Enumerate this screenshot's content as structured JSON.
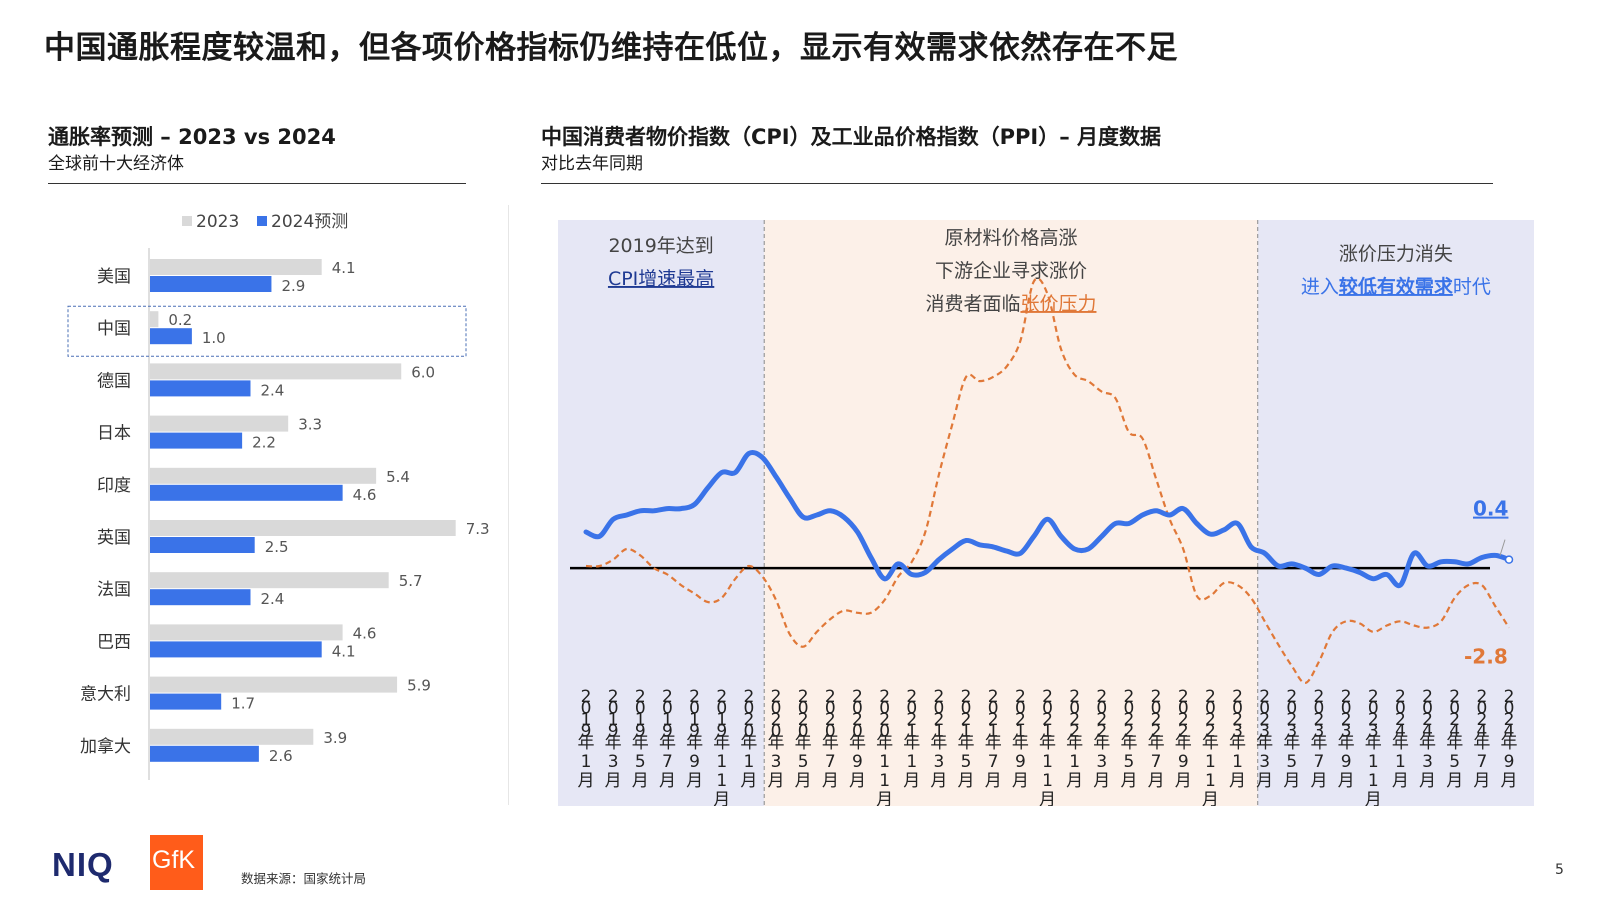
{
  "page": {
    "title": "中国通胀程度较温和，但各项价格指标仍维持在低位，显示有效需求依然存在不足",
    "source": "数据来源：国家统计局",
    "page_number": "5",
    "logos": {
      "niq": "NIQ",
      "gfk": "GfK"
    }
  },
  "colors": {
    "s2023": "#d9d9d9",
    "s2024": "#3a73e8",
    "cpi": "#3a73e8",
    "ppi": "#e07838",
    "shade_blue": "#e6e7f5",
    "shade_orange": "#fcf0e8",
    "highlight_box": "#4a6fb5"
  },
  "left": {
    "title": "通胀率预测 – 2023 vs 2024",
    "subtitle": "全球前十大经济体"
  },
  "right": {
    "title": "中国消费者物价指数（CPI）及工业品价格指数（PPI）– 月度数据",
    "subtitle": "对比去年同期"
  },
  "chart_data": [
    {
      "type": "bar",
      "orientation": "horizontal",
      "categories": [
        "美国",
        "中国",
        "德国",
        "日本",
        "印度",
        "英国",
        "法国",
        "巴西",
        "意大利",
        "加拿大"
      ],
      "series": [
        {
          "name": "2023",
          "values": [
            4.1,
            0.2,
            6.0,
            3.3,
            5.4,
            7.3,
            5.7,
            4.6,
            5.9,
            3.9
          ],
          "labels": [
            "4.1",
            "0.2",
            "6.0",
            "3.3",
            "5.4",
            "7.3",
            "5.7",
            "4.6",
            "5.9",
            "3.9"
          ]
        },
        {
          "name": "2024预测",
          "values": [
            2.9,
            1.0,
            2.4,
            2.2,
            4.6,
            2.5,
            2.4,
            4.1,
            1.7,
            2.6
          ],
          "labels": [
            "2.9",
            "1.0",
            "2.4",
            "2.2",
            "4.6",
            "2.5",
            "2.4",
            "4.1",
            "1.7",
            "2.6"
          ]
        }
      ],
      "highlight_category": "中国",
      "legend_position": "top",
      "xlim": [
        0,
        8
      ]
    },
    {
      "type": "line",
      "x": [
        "2019年1月",
        "2019年2月",
        "2019年3月",
        "2019年4月",
        "2019年5月",
        "2019年6月",
        "2019年7月",
        "2019年8月",
        "2019年9月",
        "2019年10月",
        "2019年11月",
        "2019年12月",
        "2020年1月",
        "2020年2月",
        "2020年3月",
        "2020年4月",
        "2020年5月",
        "2020年6月",
        "2020年7月",
        "2020年8月",
        "2020年9月",
        "2020年10月",
        "2020年11月",
        "2020年12月",
        "2021年1月",
        "2021年2月",
        "2021年3月",
        "2021年4月",
        "2021年5月",
        "2021年6月",
        "2021年7月",
        "2021年8月",
        "2021年9月",
        "2021年10月",
        "2021年11月",
        "2021年12月",
        "2022年1月",
        "2022年2月",
        "2022年3月",
        "2022年4月",
        "2022年5月",
        "2022年6月",
        "2022年7月",
        "2022年8月",
        "2022年9月",
        "2022年10月",
        "2022年11月",
        "2022年12月",
        "2023年1月",
        "2023年2月",
        "2023年3月",
        "2023年4月",
        "2023年5月",
        "2023年6月",
        "2023年7月",
        "2023年8月",
        "2023年9月",
        "2023年10月",
        "2023年11月",
        "2023年12月",
        "2024年1月",
        "2024年2月",
        "2024年3月",
        "2024年4月",
        "2024年5月",
        "2024年6月",
        "2024年7月",
        "2024年8月",
        "2024年9月"
      ],
      "x_tick_labels": [
        "2019年1月",
        "2019年3月",
        "2019年5月",
        "2019年7月",
        "2019年9月",
        "2019年11月",
        "2020年1月",
        "2020年3月",
        "2020年5月",
        "2020年7月",
        "2020年9月",
        "2020年11月",
        "2021年1月",
        "2021年3月",
        "2021年5月",
        "2021年7月",
        "2021年9月",
        "2021年11月",
        "2022年1月",
        "2022年3月",
        "2022年5月",
        "2022年7月",
        "2022年9月",
        "2022年11月",
        "2023年1月",
        "2023年3月",
        "2023年5月",
        "2023年7月",
        "2023年9月",
        "2023年11月",
        "2024年1月",
        "2024年3月",
        "2024年5月",
        "2024年7月",
        "2024年9月"
      ],
      "series": [
        {
          "name": "CPI",
          "values": [
            1.7,
            1.5,
            2.3,
            2.5,
            2.7,
            2.7,
            2.8,
            2.8,
            3.0,
            3.8,
            4.5,
            4.5,
            5.4,
            5.2,
            4.3,
            3.3,
            2.4,
            2.5,
            2.7,
            2.4,
            1.7,
            0.5,
            -0.5,
            0.2,
            -0.3,
            -0.2,
            0.4,
            0.9,
            1.3,
            1.1,
            1.0,
            0.8,
            0.7,
            1.5,
            2.3,
            1.5,
            0.9,
            0.9,
            1.5,
            2.1,
            2.1,
            2.5,
            2.7,
            2.5,
            2.8,
            2.1,
            1.6,
            1.8,
            2.1,
            1.0,
            0.7,
            0.1,
            0.2,
            0.0,
            -0.3,
            0.1,
            0.0,
            -0.2,
            -0.5,
            -0.3,
            -0.8,
            0.7,
            0.1,
            0.3,
            0.3,
            0.2,
            0.5,
            0.6,
            0.4
          ],
          "end_label": "0.4",
          "style": "solid"
        },
        {
          "name": "PPI",
          "values": [
            0.1,
            0.1,
            0.4,
            0.9,
            0.6,
            0.0,
            -0.3,
            -0.8,
            -1.2,
            -1.6,
            -1.4,
            -0.5,
            0.1,
            -0.4,
            -1.5,
            -3.1,
            -3.7,
            -3.0,
            -2.4,
            -2.0,
            -2.1,
            -2.1,
            -1.5,
            -0.4,
            0.3,
            1.7,
            4.4,
            6.8,
            9.0,
            8.8,
            9.0,
            9.5,
            10.7,
            13.5,
            12.9,
            10.3,
            9.1,
            8.8,
            8.3,
            8.0,
            6.4,
            6.1,
            4.2,
            2.3,
            0.9,
            -1.3,
            -1.3,
            -0.7,
            -0.8,
            -1.4,
            -2.5,
            -3.6,
            -4.6,
            -5.4,
            -4.4,
            -3.0,
            -2.5,
            -2.6,
            -3.0,
            -2.7,
            -2.5,
            -2.7,
            -2.8,
            -2.5,
            -1.4,
            -0.8,
            -0.8,
            -1.8,
            -2.8
          ],
          "end_label": "-2.8",
          "style": "dashed"
        }
      ],
      "ylim": [
        -5.5,
        14.5
      ],
      "zero_line": true,
      "regions": [
        {
          "from": "2019年1月",
          "to": "2020年3月",
          "lines": [
            "2019年达到",
            "CPI增速最高"
          ],
          "emphasis": "CPI增速最高"
        },
        {
          "from": "2020年3月",
          "to": "2023年3月",
          "lines": [
            "原材料价格高涨",
            "下游企业寻求涨价",
            "消费者面临张价压力"
          ],
          "emphasis": "张价压力"
        },
        {
          "from": "2023年3月",
          "to": "2024年9月",
          "lines": [
            "涨价压力消失",
            "进入较低有效需求时代"
          ],
          "emphasis": "较低有效需求"
        }
      ]
    }
  ]
}
